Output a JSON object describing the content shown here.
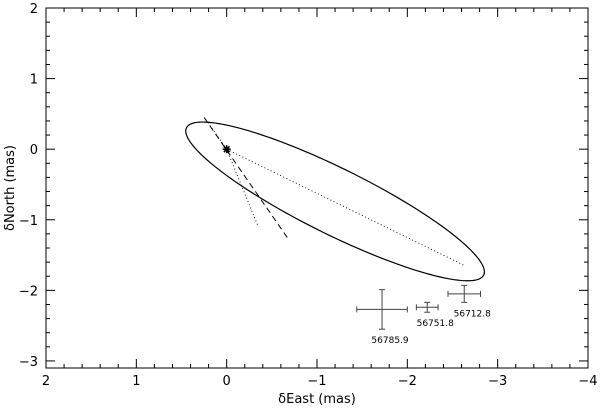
{
  "chart_data": {
    "type": "scatter",
    "title": "",
    "xlabel": "δEast (mas)",
    "ylabel": "δNorth (mas)",
    "xlim": [
      2,
      -4
    ],
    "ylim": [
      -3.1,
      2.0
    ],
    "x_ticks": [
      2,
      1,
      0,
      -1,
      -2,
      -3,
      -4
    ],
    "x_tick_labels": [
      "2",
      "1",
      "0",
      "−1",
      "−2",
      "−3",
      "−4"
    ],
    "y_ticks": [
      -3,
      -2,
      -1,
      0,
      1,
      2
    ],
    "y_tick_labels": [
      "−3",
      "−2",
      "−1",
      "0",
      "1",
      "2"
    ],
    "grid": false,
    "orbit_ellipse": {
      "center": [
        -1.2,
        -0.74
      ],
      "semi_major": 1.95,
      "semi_minor": 0.44,
      "angle_deg": 33
    },
    "primary_star": {
      "x": 0,
      "y": 0
    },
    "measurements": [
      {
        "epoch": "56712.8",
        "x": -2.63,
        "y": -2.05,
        "x_err": 0.18,
        "y_err": 0.12
      },
      {
        "epoch": "56751.8",
        "x": -2.22,
        "y": -2.24,
        "x_err": 0.12,
        "y_err": 0.07
      },
      {
        "epoch": "56785.9",
        "x": -1.72,
        "y": -2.27,
        "x_err": 0.28,
        "y_err": 0.28
      }
    ],
    "dotted_lines": [
      {
        "from": [
          0,
          0
        ],
        "to": [
          -2.62,
          -1.64
        ]
      },
      {
        "from": [
          0,
          0
        ],
        "to": [
          0.22,
          0.4
        ]
      },
      {
        "from": [
          0,
          0
        ],
        "to": [
          -0.35,
          -1.1
        ]
      }
    ],
    "dashed_line": {
      "from": [
        0.25,
        0.45
      ],
      "to": [
        -0.67,
        -1.25
      ]
    }
  }
}
